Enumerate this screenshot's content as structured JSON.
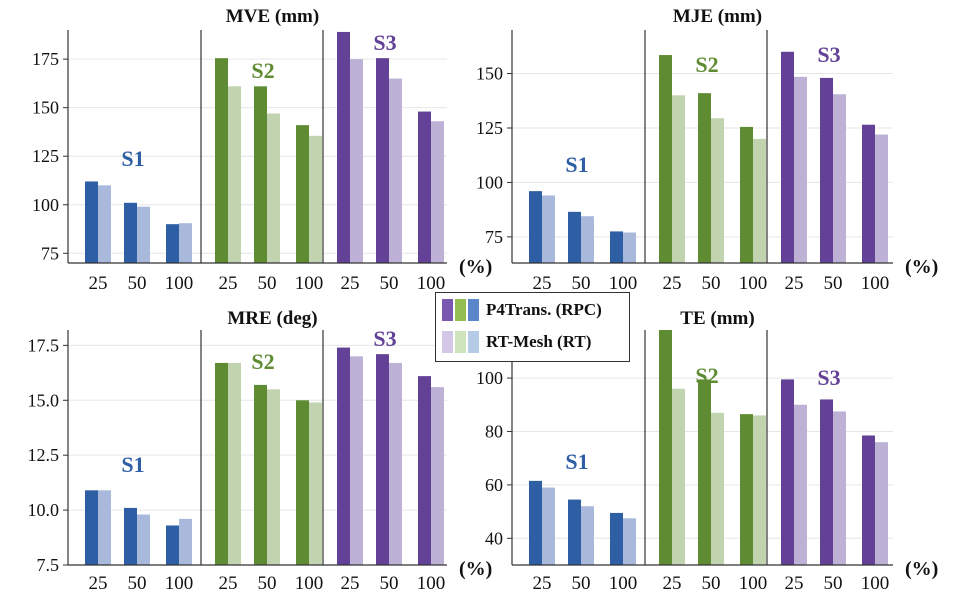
{
  "legend": {
    "rpc_label": "P4Trans. (RPC)",
    "rt_label": "RT-Mesh (RT)"
  },
  "colors": {
    "S1": {
      "rpc": "#2e5ea4",
      "rt": "#a9b9dc",
      "legend_rpc": "#5b86c9",
      "legend_rt": "#b5cbe8"
    },
    "S2": {
      "rpc": "#5f8c33",
      "rt": "#c2d3b0",
      "legend_rpc": "#94be52",
      "legend_rt": "#cfe3bd"
    },
    "S3": {
      "rpc": "#624196",
      "rt": "#bdb1d6",
      "legend_rpc": "#7a57b0",
      "legend_rt": "#d3c7e6"
    }
  },
  "chart_data": [
    {
      "type": "bar",
      "title": "MVE (mm)",
      "xlabel": "(%)",
      "groups": [
        "S1",
        "S2",
        "S3"
      ],
      "categories": [
        "25",
        "50",
        "100"
      ],
      "ylim": [
        70,
        190
      ],
      "yticks": [
        75,
        100,
        125,
        150,
        175
      ],
      "ytick_labels": [
        "75",
        "100",
        "125",
        "150",
        "175"
      ],
      "series": [
        {
          "name": "P4Trans. (RPC)",
          "values": {
            "S1": [
              112,
              101,
              90
            ],
            "S2": [
              175.5,
              161,
              141
            ],
            "S3": [
              189,
              175.5,
              148
            ]
          }
        },
        {
          "name": "RT-Mesh (RT)",
          "values": {
            "S1": [
              110,
              99,
              90.5
            ],
            "S2": [
              161,
              147,
              135.5
            ],
            "S3": [
              175,
              165,
              143
            ]
          }
        }
      ]
    },
    {
      "type": "bar",
      "title": "MJE (mm)",
      "xlabel": "(%)",
      "groups": [
        "S1",
        "S2",
        "S3"
      ],
      "categories": [
        "25",
        "50",
        "100"
      ],
      "ylim": [
        63,
        170
      ],
      "yticks": [
        75,
        100,
        125,
        150
      ],
      "ytick_labels": [
        "75",
        "100",
        "125",
        "150"
      ],
      "series": [
        {
          "name": "P4Trans. (RPC)",
          "values": {
            "S1": [
              96,
              86.5,
              77.5
            ],
            "S2": [
              158.5,
              141,
              125.5
            ],
            "S3": [
              160,
              148,
              126.5
            ]
          }
        },
        {
          "name": "RT-Mesh (RT)",
          "values": {
            "S1": [
              94,
              84.5,
              77
            ],
            "S2": [
              140,
              129.5,
              120
            ],
            "S3": [
              148.5,
              140.5,
              122
            ]
          }
        }
      ]
    },
    {
      "type": "bar",
      "title": "MRE (deg)",
      "xlabel": "(%)",
      "groups": [
        "S1",
        "S2",
        "S3"
      ],
      "categories": [
        "25",
        "50",
        "100"
      ],
      "ylim": [
        7.5,
        18.2
      ],
      "yticks": [
        7.5,
        10.0,
        12.5,
        15.0,
        17.5
      ],
      "ytick_labels": [
        "7.5",
        "10.0",
        "12.5",
        "15.0",
        "17.5"
      ],
      "series": [
        {
          "name": "P4Trans. (RPC)",
          "values": {
            "S1": [
              10.9,
              10.1,
              9.3
            ],
            "S2": [
              16.7,
              15.7,
              15.0
            ],
            "S3": [
              17.4,
              17.1,
              16.1
            ]
          }
        },
        {
          "name": "RT-Mesh (RT)",
          "values": {
            "S1": [
              10.9,
              9.8,
              9.6
            ],
            "S2": [
              16.7,
              15.5,
              14.9
            ],
            "S3": [
              17.0,
              16.7,
              15.6
            ]
          }
        }
      ]
    },
    {
      "type": "bar",
      "title": "TE (mm)",
      "xlabel": "(%)",
      "groups": [
        "S1",
        "S2",
        "S3"
      ],
      "categories": [
        "25",
        "50",
        "100"
      ],
      "ylim": [
        30,
        118
      ],
      "yticks": [
        40,
        60,
        80,
        100
      ],
      "ytick_labels": [
        "40",
        "60",
        "80",
        "100"
      ],
      "series": [
        {
          "name": "P4Trans. (RPC)",
          "values": {
            "S1": [
              61.5,
              54.5,
              49.5
            ],
            "S2": [
              118,
              99.5,
              86.5
            ],
            "S3": [
              99.5,
              92,
              78.5
            ]
          }
        },
        {
          "name": "RT-Mesh (RT)",
          "values": {
            "S1": [
              59,
              52,
              47.5
            ],
            "S2": [
              96,
              87,
              86
            ],
            "S3": [
              90,
              87.5,
              76
            ]
          }
        }
      ]
    }
  ]
}
